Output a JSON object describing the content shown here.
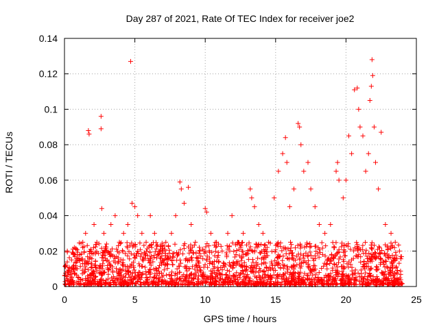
{
  "chart_data": {
    "type": "scatter",
    "title": "Day 287 of 2021, Rate Of TEC Index for receiver joe2",
    "xlabel": "GPS time / hours",
    "ylabel": "ROTI / TECUs",
    "xlim": [
      0,
      25
    ],
    "ylim": [
      0,
      0.14
    ],
    "x_ticks": [
      "0",
      "5",
      "10",
      "15",
      "20",
      "25"
    ],
    "y_ticks": [
      "0",
      "0.02",
      "0.04",
      "0.06",
      "0.08",
      "0.1",
      "0.12",
      "0.14"
    ],
    "grid": true,
    "marker": "+",
    "color": "#ff0000",
    "series": [
      {
        "points": [
          [
            0.1,
            0.012
          ],
          [
            0.2,
            0.02
          ],
          [
            0.3,
            0.008
          ],
          [
            0.5,
            0.015
          ],
          [
            0.7,
            0.022
          ],
          [
            0.9,
            0.01
          ],
          [
            1.1,
            0.018
          ],
          [
            1.3,
            0.025
          ],
          [
            1.5,
            0.03
          ],
          [
            1.7,
            0.088
          ],
          [
            1.75,
            0.086
          ],
          [
            1.9,
            0.02
          ],
          [
            2.1,
            0.035
          ],
          [
            2.3,
            0.025
          ],
          [
            2.6,
            0.096
          ],
          [
            2.6,
            0.089
          ],
          [
            2.65,
            0.044
          ],
          [
            2.8,
            0.03
          ],
          [
            3.0,
            0.02
          ],
          [
            3.3,
            0.035
          ],
          [
            3.6,
            0.04
          ],
          [
            3.9,
            0.025
          ],
          [
            4.2,
            0.03
          ],
          [
            4.5,
            0.035
          ],
          [
            4.7,
            0.127
          ],
          [
            4.8,
            0.047
          ],
          [
            5.0,
            0.045
          ],
          [
            5.2,
            0.04
          ],
          [
            5.5,
            0.03
          ],
          [
            5.8,
            0.025
          ],
          [
            6.1,
            0.04
          ],
          [
            6.4,
            0.03
          ],
          [
            6.8,
            0.02
          ],
          [
            7.2,
            0.025
          ],
          [
            7.6,
            0.03
          ],
          [
            7.9,
            0.04
          ],
          [
            8.2,
            0.059
          ],
          [
            8.3,
            0.055
          ],
          [
            8.5,
            0.047
          ],
          [
            8.8,
            0.056
          ],
          [
            9.0,
            0.035
          ],
          [
            9.3,
            0.025
          ],
          [
            9.6,
            0.02
          ],
          [
            10.0,
            0.044
          ],
          [
            10.1,
            0.042
          ],
          [
            10.4,
            0.03
          ],
          [
            10.8,
            0.025
          ],
          [
            11.2,
            0.02
          ],
          [
            11.6,
            0.03
          ],
          [
            11.9,
            0.04
          ],
          [
            12.3,
            0.025
          ],
          [
            12.7,
            0.03
          ],
          [
            13.2,
            0.055
          ],
          [
            13.3,
            0.05
          ],
          [
            13.5,
            0.045
          ],
          [
            13.8,
            0.035
          ],
          [
            14.1,
            0.03
          ],
          [
            14.5,
            0.025
          ],
          [
            14.9,
            0.05
          ],
          [
            15.2,
            0.065
          ],
          [
            15.5,
            0.075
          ],
          [
            15.7,
            0.084
          ],
          [
            15.8,
            0.07
          ],
          [
            16.0,
            0.045
          ],
          [
            16.3,
            0.055
          ],
          [
            16.6,
            0.092
          ],
          [
            16.7,
            0.09
          ],
          [
            16.8,
            0.08
          ],
          [
            17.0,
            0.065
          ],
          [
            17.3,
            0.07
          ],
          [
            17.5,
            0.055
          ],
          [
            17.8,
            0.045
          ],
          [
            18.1,
            0.035
          ],
          [
            18.5,
            0.03
          ],
          [
            18.9,
            0.035
          ],
          [
            19.3,
            0.065
          ],
          [
            19.4,
            0.07
          ],
          [
            19.5,
            0.06
          ],
          [
            19.8,
            0.05
          ],
          [
            20.0,
            0.06
          ],
          [
            20.2,
            0.085
          ],
          [
            20.4,
            0.075
          ],
          [
            20.6,
            0.111
          ],
          [
            20.8,
            0.112
          ],
          [
            20.9,
            0.1
          ],
          [
            21.0,
            0.09
          ],
          [
            21.2,
            0.085
          ],
          [
            21.4,
            0.065
          ],
          [
            21.6,
            0.075
          ],
          [
            21.7,
            0.105
          ],
          [
            21.8,
            0.113
          ],
          [
            21.85,
            0.128
          ],
          [
            21.9,
            0.119
          ],
          [
            22.0,
            0.09
          ],
          [
            22.1,
            0.07
          ],
          [
            22.3,
            0.055
          ],
          [
            22.5,
            0.087
          ],
          [
            22.8,
            0.035
          ],
          [
            23.2,
            0.03
          ],
          [
            23.5,
            0.025
          ],
          [
            23.8,
            0.02
          ]
        ],
        "noise_band": {
          "x_range": [
            0,
            24
          ],
          "y_range": [
            0.001,
            0.025
          ],
          "count": 2000
        }
      }
    ]
  }
}
